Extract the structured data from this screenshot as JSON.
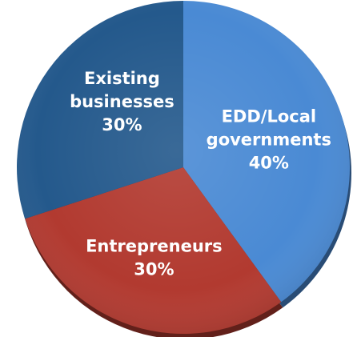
{
  "chart_data": {
    "type": "pie",
    "title": "",
    "slices": [
      {
        "label_lines": [
          "EDD/Local",
          "governments"
        ],
        "value": 40,
        "value_label": "40%",
        "color": "#4a8ad4"
      },
      {
        "label_lines": [
          "Entrepreneurs"
        ],
        "value": 30,
        "value_label": "30%",
        "color": "#b23a30"
      },
      {
        "label_lines": [
          "Existing",
          "businesses"
        ],
        "value": 30,
        "value_label": "30%",
        "color": "#24598c"
      }
    ]
  }
}
